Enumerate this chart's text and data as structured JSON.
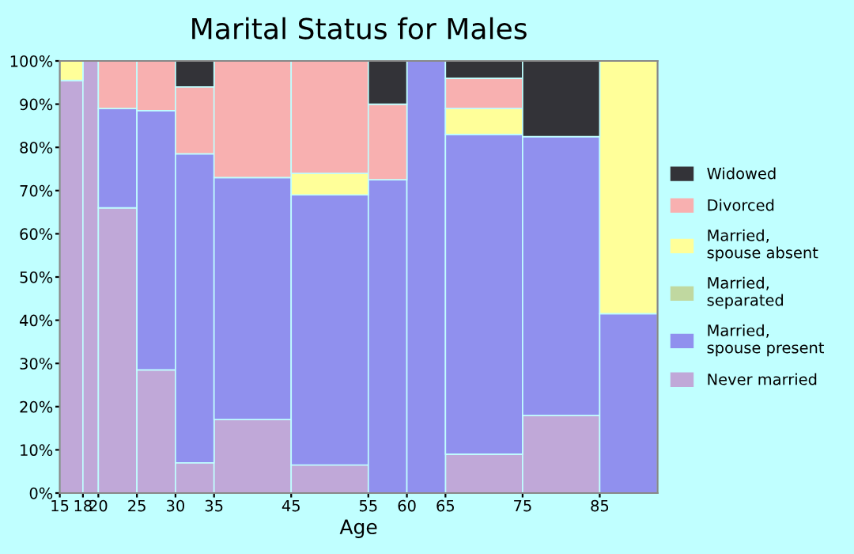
{
  "chart_data": {
    "type": "bar",
    "stacked": true,
    "title": "Marital Status for Males",
    "xlabel": "Age",
    "x": [
      16.5,
      19,
      22.5,
      27.5,
      32.5,
      40,
      50,
      57.5,
      62.5,
      70,
      80,
      88.75
    ],
    "series": [
      {
        "name": "Never married",
        "color": "#c0a8d8",
        "values": [
          95.5,
          100,
          66,
          28.5,
          7,
          17,
          6.5,
          0,
          0,
          9,
          18,
          0
        ]
      },
      {
        "name": "Married,\nspouse present",
        "color": "#9090ee",
        "values": [
          0,
          0,
          23,
          60,
          71.5,
          56,
          62.5,
          72.5,
          100,
          74,
          64.5,
          41.5
        ]
      },
      {
        "name": "Married,\nseparated",
        "color": "#c0d8a0",
        "values": [
          0,
          0,
          0,
          0,
          0,
          0,
          0,
          0,
          0,
          0,
          0,
          0
        ]
      },
      {
        "name": "Married,\nspouse absent",
        "color": "#ffff99",
        "values": [
          4.5,
          0,
          0,
          0,
          0,
          0,
          5,
          0,
          0,
          6,
          0,
          58.5
        ]
      },
      {
        "name": "Divorced",
        "color": "#f8b0b0",
        "values": [
          0,
          0,
          11,
          11.5,
          15.5,
          27,
          26,
          17.5,
          0,
          7,
          0,
          0
        ]
      },
      {
        "name": "Widowed",
        "color": "#333338",
        "values": [
          0,
          0,
          0,
          0,
          6,
          0,
          0,
          10,
          0,
          4,
          17.5,
          0
        ]
      }
    ],
    "xlim": [
      15,
      92.5
    ],
    "xticks": [
      15,
      18,
      20,
      25,
      30,
      35,
      45,
      55,
      60,
      65,
      75,
      85
    ],
    "ylim": [
      0,
      100
    ],
    "yticks": [
      {
        "value": 0,
        "label": "0%"
      },
      {
        "value": 10,
        "label": "10%"
      },
      {
        "value": 20,
        "label": "20%"
      },
      {
        "value": 30,
        "label": "30%"
      },
      {
        "value": 40,
        "label": "40%"
      },
      {
        "value": 50,
        "label": "50%"
      },
      {
        "value": 60,
        "label": "60%"
      },
      {
        "value": 70,
        "label": "70%"
      },
      {
        "value": 80,
        "label": "80%"
      },
      {
        "value": 90,
        "label": "90%"
      },
      {
        "value": 100,
        "label": "100%"
      }
    ],
    "legend": "right",
    "grid": false
  }
}
